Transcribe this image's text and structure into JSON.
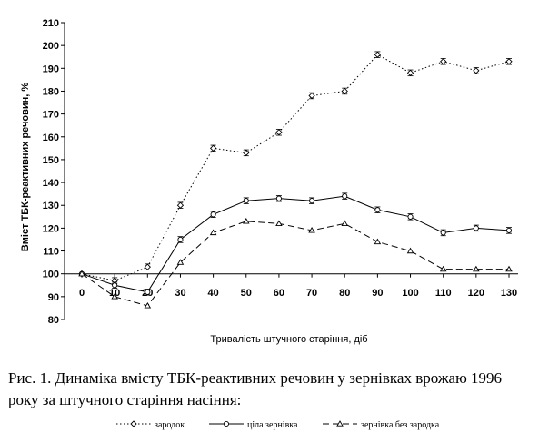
{
  "chart_data": {
    "type": "line",
    "ylabel": "Вміст ТБК-реактивних речовин, %",
    "xlabel": "Тривалість штучного старіння, діб",
    "x": [
      0,
      10,
      20,
      30,
      40,
      50,
      60,
      70,
      80,
      90,
      100,
      110,
      120,
      130
    ],
    "xticks": [
      "0",
      "10",
      "20",
      "30",
      "40",
      "50",
      "60",
      "70",
      "80",
      "90",
      "100",
      "110",
      "120",
      "130"
    ],
    "ylim": [
      80,
      210
    ],
    "yticks": [
      "80",
      "90",
      "100",
      "110",
      "120",
      "130",
      "140",
      "150",
      "160",
      "170",
      "180",
      "190",
      "200",
      "210"
    ],
    "grid": false,
    "legend_position": "bottom",
    "series": [
      {
        "name": "зародок",
        "style": "dotted",
        "marker": "diamond",
        "error_bars": true,
        "values": [
          100,
          97,
          103,
          130,
          155,
          153,
          162,
          178,
          180,
          196,
          188,
          193,
          189,
          193
        ]
      },
      {
        "name": "ціла зернівка",
        "style": "solid",
        "marker": "circle",
        "error_bars": true,
        "values": [
          100,
          95,
          92,
          115,
          126,
          132,
          133,
          132,
          134,
          128,
          125,
          118,
          120,
          119
        ]
      },
      {
        "name": "зернівка без зародка",
        "style": "dashed",
        "marker": "triangle",
        "error_bars": false,
        "values": [
          100,
          90,
          86,
          105,
          118,
          123,
          122,
          119,
          122,
          114,
          110,
          102,
          102,
          102
        ]
      }
    ]
  },
  "caption": "Рис. 1. Динаміка вмісту ТБК-реактивних речовин у зернівках врожаю 1996 року за штучного старіння насіння:"
}
